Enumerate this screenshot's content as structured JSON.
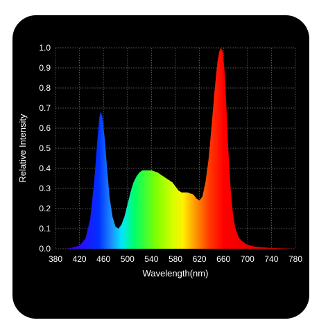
{
  "chart_data": {
    "type": "area",
    "xlabel": "Wavelength(nm)",
    "ylabel": "Relative Intensity",
    "xlim": [
      380,
      780
    ],
    "ylim": [
      0,
      1.0
    ],
    "x_ticks": [
      380,
      420,
      460,
      500,
      540,
      580,
      620,
      660,
      700,
      740,
      780
    ],
    "y_ticks": [
      "0.0",
      "0.1",
      "0.2",
      "0.3",
      "0.4",
      "0.5",
      "0.6",
      "0.7",
      "0.8",
      "0.9",
      "1.0"
    ],
    "grid": true,
    "series": [
      {
        "x": [
          380,
          400,
          420,
          430,
          438,
          445,
          450,
          453,
          455,
          458,
          462,
          466,
          470,
          475,
          480,
          485,
          490,
          495,
          500,
          505,
          510,
          515,
          520,
          525,
          530,
          535,
          540,
          545,
          550,
          555,
          560,
          565,
          570,
          575,
          580,
          585,
          590,
          595,
          600,
          605,
          610,
          615,
          620,
          625,
          630,
          635,
          640,
          645,
          650,
          653,
          656,
          659,
          662,
          665,
          668,
          672,
          676,
          680,
          685,
          690,
          700,
          710,
          720,
          740,
          760,
          780
        ],
        "values": [
          0.0,
          0.0,
          0.015,
          0.05,
          0.15,
          0.35,
          0.55,
          0.65,
          0.68,
          0.66,
          0.55,
          0.4,
          0.26,
          0.16,
          0.11,
          0.1,
          0.12,
          0.16,
          0.22,
          0.28,
          0.33,
          0.36,
          0.38,
          0.39,
          0.39,
          0.39,
          0.39,
          0.385,
          0.38,
          0.37,
          0.36,
          0.35,
          0.34,
          0.33,
          0.31,
          0.29,
          0.28,
          0.28,
          0.28,
          0.275,
          0.27,
          0.25,
          0.24,
          0.26,
          0.33,
          0.44,
          0.6,
          0.78,
          0.93,
          0.98,
          1.0,
          0.98,
          0.88,
          0.7,
          0.5,
          0.3,
          0.17,
          0.1,
          0.06,
          0.04,
          0.02,
          0.012,
          0.008,
          0.004,
          0.002,
          0.0
        ]
      }
    ]
  }
}
